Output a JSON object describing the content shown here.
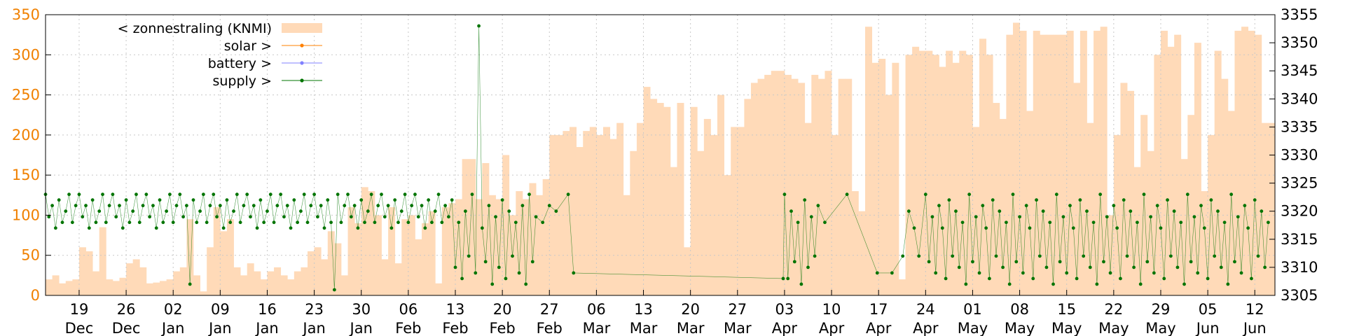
{
  "chart_data": {
    "type": "line",
    "xlim": [
      0,
      183
    ],
    "xticks": [
      {
        "value": 5,
        "label": "19 Dec"
      },
      {
        "value": 12,
        "label": "26 Dec"
      },
      {
        "value": 19,
        "label": "02 Jan"
      },
      {
        "value": 26,
        "label": "09 Jan"
      },
      {
        "value": 33,
        "label": "16 Jan"
      },
      {
        "value": 40,
        "label": "23 Jan"
      },
      {
        "value": 47,
        "label": "30 Jan"
      },
      {
        "value": 54,
        "label": "06 Feb"
      },
      {
        "value": 61,
        "label": "13 Feb"
      },
      {
        "value": 68,
        "label": "20 Feb"
      },
      {
        "value": 75,
        "label": "27 Feb"
      },
      {
        "value": 82,
        "label": "06 Mar"
      },
      {
        "value": 89,
        "label": "13 Mar"
      },
      {
        "value": 96,
        "label": "20 Mar"
      },
      {
        "value": 103,
        "label": "27 Mar"
      },
      {
        "value": 110,
        "label": "03 Apr"
      },
      {
        "value": 117,
        "label": "10 Apr"
      },
      {
        "value": 124,
        "label": "17 Apr"
      },
      {
        "value": 131,
        "label": "24 Apr"
      },
      {
        "value": 138,
        "label": "01 May"
      },
      {
        "value": 145,
        "label": "08 May"
      },
      {
        "value": 152,
        "label": "15 May"
      },
      {
        "value": 159,
        "label": "22 May"
      },
      {
        "value": 166,
        "label": "29 May"
      },
      {
        "value": 173,
        "label": "05 Jun"
      },
      {
        "value": 180,
        "label": "12 Jun"
      }
    ],
    "ylim": [
      0,
      350
    ],
    "yticks": [
      0,
      50,
      100,
      150,
      200,
      250,
      300,
      350
    ],
    "y2lim": [
      3305,
      3355
    ],
    "y2ticks": [
      3305,
      3310,
      3315,
      3320,
      3325,
      3330,
      3335,
      3340,
      3345,
      3350,
      3355
    ],
    "grid": true,
    "legend": "upper left",
    "series": [
      {
        "name": "< zonnestraling (KNMI)",
        "type": "area",
        "color": "#ffdab8",
        "x": [
          0,
          1,
          2,
          3,
          4,
          5,
          6,
          7,
          8,
          9,
          10,
          11,
          12,
          13,
          14,
          15,
          16,
          17,
          18,
          19,
          20,
          21,
          22,
          23,
          24,
          25,
          26,
          27,
          28,
          29,
          30,
          31,
          32,
          33,
          34,
          35,
          36,
          37,
          38,
          39,
          40,
          41,
          42,
          43,
          44,
          45,
          46,
          47,
          48,
          49,
          50,
          51,
          52,
          53,
          54,
          55,
          56,
          57,
          58,
          59,
          60,
          61,
          62,
          63,
          64,
          65,
          66,
          67,
          68,
          69,
          70,
          71,
          72,
          73,
          74,
          75,
          76,
          77,
          78,
          79,
          80,
          81,
          82,
          83,
          84,
          85,
          86,
          87,
          88,
          89,
          90,
          91,
          92,
          93,
          94,
          95,
          96,
          97,
          98,
          99,
          100,
          101,
          102,
          103,
          104,
          105,
          106,
          107,
          108,
          109,
          110,
          111,
          112,
          113,
          114,
          115,
          116,
          117,
          118,
          119,
          120,
          121,
          122,
          123,
          124,
          125,
          126,
          127,
          128,
          129,
          130,
          131,
          132,
          133,
          134,
          135,
          136,
          137,
          138,
          139,
          140,
          141,
          142,
          143,
          144,
          145,
          146,
          147,
          148,
          149,
          150,
          151,
          152,
          153,
          154,
          155,
          156,
          157,
          158,
          159,
          160,
          161,
          162,
          163,
          164,
          165,
          166,
          167,
          168,
          169,
          170,
          171,
          172,
          173,
          174,
          175,
          176,
          177,
          178,
          179,
          180,
          181,
          182
        ],
        "values": [
          20,
          25,
          15,
          18,
          20,
          60,
          55,
          30,
          85,
          20,
          18,
          22,
          40,
          45,
          35,
          15,
          16,
          18,
          20,
          30,
          35,
          95,
          25,
          5,
          60,
          110,
          80,
          95,
          35,
          25,
          40,
          30,
          20,
          30,
          35,
          25,
          20,
          30,
          35,
          55,
          60,
          45,
          80,
          65,
          25,
          110,
          90,
          135,
          130,
          100,
          45,
          110,
          40,
          95,
          100,
          70,
          90,
          105,
          15,
          110,
          115,
          120,
          170,
          170,
          120,
          165,
          125,
          120,
          175,
          100,
          130,
          120,
          140,
          125,
          145,
          200,
          200,
          205,
          210,
          185,
          205,
          210,
          200,
          210,
          195,
          215,
          125,
          180,
          215,
          260,
          245,
          240,
          235,
          160,
          240,
          60,
          235,
          180,
          220,
          200,
          250,
          150,
          210,
          210,
          245,
          265,
          270,
          275,
          280,
          280,
          275,
          270,
          265,
          215,
          275,
          270,
          280,
          200,
          270,
          270,
          130,
          105,
          335,
          290,
          295,
          250,
          290,
          20,
          300,
          310,
          305,
          305,
          300,
          285,
          305,
          290,
          305,
          300,
          210,
          320,
          300,
          240,
          220,
          325,
          340,
          330,
          230,
          330,
          325,
          325,
          325,
          325,
          330,
          265,
          330,
          215,
          330,
          335,
          100,
          200,
          265,
          255,
          160,
          225,
          180,
          300,
          330,
          310,
          325,
          170,
          225,
          315,
          130,
          200,
          305,
          270,
          230,
          330,
          335,
          330,
          325,
          215,
          215
        ]
      },
      {
        "name": "solar >",
        "type": "line",
        "color": "#ff8000"
      },
      {
        "name": "battery >",
        "type": "line",
        "color": "#8080ff"
      },
      {
        "name": "supply >",
        "type": "line",
        "axis": "y2",
        "color": "#007400",
        "x": [
          0,
          0.5,
          1,
          1.5,
          2,
          2.5,
          3,
          3.5,
          4,
          4.5,
          5,
          5.5,
          6,
          6.5,
          7,
          7.5,
          8,
          8.5,
          9,
          9.5,
          10,
          10.5,
          11,
          11.5,
          12,
          12.5,
          13,
          13.5,
          14,
          14.5,
          15,
          15.5,
          16,
          16.5,
          17,
          17.5,
          18,
          18.5,
          19,
          19.5,
          20,
          20.5,
          21,
          21.5,
          22,
          22.5,
          23,
          23.5,
          24,
          24.5,
          25,
          25.5,
          26,
          26.5,
          27,
          27.5,
          28,
          28.5,
          29,
          29.5,
          30,
          30.5,
          31,
          31.5,
          32,
          32.5,
          33,
          33.5,
          34,
          34.5,
          35,
          35.5,
          36,
          36.5,
          37,
          37.5,
          38,
          38.5,
          39,
          39.5,
          40,
          40.5,
          41,
          41.5,
          42,
          42.5,
          43,
          43.5,
          44,
          44.5,
          45,
          45.5,
          46,
          46.5,
          47,
          47.5,
          48,
          48.5,
          49,
          49.5,
          50,
          50.5,
          51,
          51.5,
          52,
          52.5,
          53,
          53.5,
          54,
          54.5,
          55,
          55.5,
          56,
          56.5,
          57,
          57.5,
          58,
          58.5,
          59,
          59.5,
          60,
          60.5,
          61,
          61.5,
          62,
          62.5,
          63,
          63.5,
          64,
          64.5,
          65,
          65.5,
          66,
          66.5,
          67,
          67.5,
          68,
          68.5,
          69,
          69.5,
          70,
          70.5,
          71,
          71.5,
          72,
          72.5,
          73,
          74,
          75,
          76,
          77.8,
          78.6,
          109.8,
          110,
          110.5,
          111,
          111.5,
          112,
          112.5,
          113,
          113.5,
          114,
          114.5,
          115,
          116,
          119.3,
          123.8,
          126,
          127.6,
          128.5,
          129.3,
          130,
          131,
          131.5,
          132,
          132.5,
          133,
          133.5,
          134,
          134.5,
          135,
          135.5,
          136,
          136.5,
          137,
          137.5,
          138,
          138.5,
          139,
          139.5,
          140,
          140.5,
          141,
          141.5,
          142,
          142.5,
          143,
          143.5,
          144,
          144.5,
          145,
          145.5,
          146,
          146.5,
          147,
          147.5,
          148,
          148.5,
          149,
          149.5,
          150,
          150.5,
          151,
          151.5,
          152,
          152.5,
          153,
          153.5,
          154,
          154.5,
          155,
          155.5,
          156,
          156.5,
          157,
          157.5,
          158,
          158.5,
          159,
          159.5,
          160,
          160.5,
          161,
          161.5,
          162,
          162.5,
          163,
          163.5,
          164,
          164.5,
          165,
          165.5,
          166,
          166.5,
          167,
          167.5,
          168,
          168.5,
          169,
          169.5,
          170,
          170.5,
          171,
          171.5,
          172,
          172.5,
          173,
          173.5,
          174,
          174.5,
          175,
          175.5,
          176,
          176.5,
          177,
          177.5,
          178,
          178.5,
          179,
          179.5,
          180,
          180.5,
          181,
          181.5,
          182
        ],
        "values": [
          3323,
          3319,
          3321,
          3317,
          3322,
          3318,
          3320,
          3323,
          3318,
          3321,
          3323,
          3319,
          3321,
          3317,
          3322,
          3318,
          3320,
          3323,
          3318,
          3321,
          3323,
          3319,
          3321,
          3317,
          3322,
          3318,
          3320,
          3323,
          3318,
          3321,
          3323,
          3319,
          3321,
          3317,
          3322,
          3318,
          3320,
          3323,
          3318,
          3321,
          3323,
          3319,
          3321,
          3307,
          3322,
          3318,
          3320,
          3323,
          3318,
          3321,
          3323,
          3319,
          3321,
          3317,
          3322,
          3318,
          3320,
          3323,
          3318,
          3321,
          3323,
          3319,
          3321,
          3317,
          3322,
          3318,
          3320,
          3323,
          3318,
          3321,
          3323,
          3319,
          3321,
          3317,
          3322,
          3318,
          3320,
          3323,
          3318,
          3321,
          3323,
          3319,
          3321,
          3317,
          3322,
          3318,
          3306,
          3323,
          3318,
          3321,
          3323,
          3319,
          3321,
          3317,
          3322,
          3318,
          3320,
          3323,
          3318,
          3321,
          3323,
          3319,
          3321,
          3317,
          3322,
          3318,
          3320,
          3323,
          3318,
          3321,
          3323,
          3319,
          3321,
          3317,
          3322,
          3318,
          3320,
          3323,
          3318,
          3321,
          3319,
          3322,
          3310,
          3318,
          3308,
          3320,
          3312,
          3323,
          3309,
          3353,
          3317,
          3311,
          3321,
          3307,
          3319,
          3310,
          3322,
          3308,
          3320,
          3312,
          3318,
          3309,
          3321,
          3307,
          3323,
          3311,
          3319,
          3318,
          3321,
          3320,
          3323,
          3309,
          3308,
          3323,
          3308,
          3320,
          3311,
          3318,
          3307,
          3322,
          3310,
          3319,
          3312,
          3321,
          3318,
          3323,
          3309,
          3309,
          3312,
          3320,
          3317,
          3312,
          3323,
          3311,
          3319,
          3309,
          3321,
          3317,
          3308,
          3322,
          3312,
          3320,
          3310,
          3318,
          3307,
          3323,
          3311,
          3319,
          3309,
          3321,
          3317,
          3308,
          3322,
          3312,
          3320,
          3310,
          3318,
          3307,
          3323,
          3311,
          3319,
          3309,
          3321,
          3317,
          3308,
          3322,
          3312,
          3320,
          3310,
          3318,
          3307,
          3323,
          3311,
          3319,
          3309,
          3321,
          3317,
          3308,
          3322,
          3312,
          3320,
          3310,
          3318,
          3307,
          3323,
          3311,
          3319,
          3309,
          3321,
          3317,
          3308,
          3322,
          3312,
          3320,
          3310,
          3318,
          3307,
          3323,
          3311,
          3319,
          3309,
          3321,
          3317,
          3308,
          3322,
          3312,
          3320,
          3310,
          3318,
          3307,
          3323,
          3311,
          3319,
          3309,
          3321,
          3317,
          3308,
          3322,
          3312,
          3320,
          3310,
          3318,
          3307,
          3323,
          3311,
          3319,
          3309,
          3321,
          3317,
          3308,
          3322,
          3312,
          3320,
          3310,
          3318
        ]
      }
    ]
  }
}
